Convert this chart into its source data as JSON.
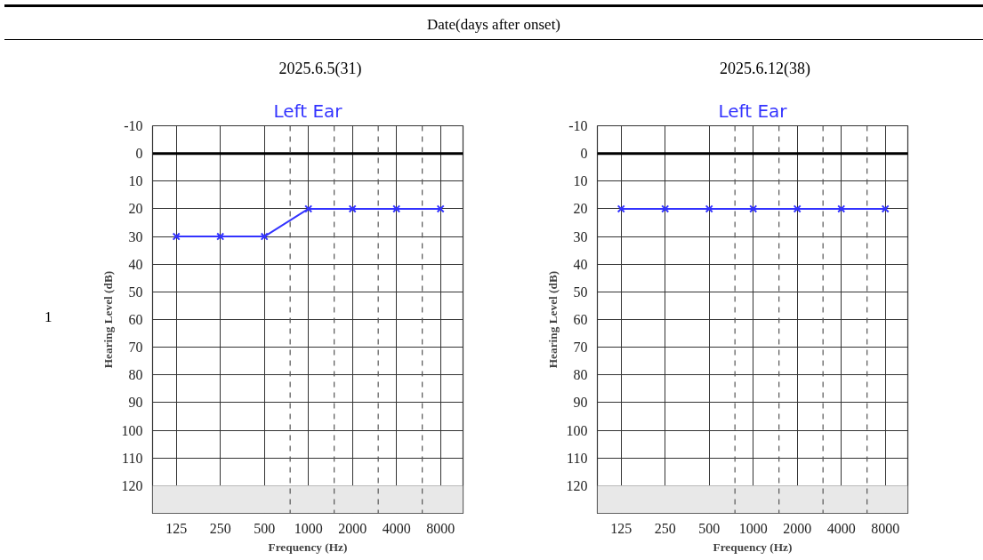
{
  "chart_data": [
    {
      "type": "line",
      "title": "Left Ear",
      "subtitle": "2025.6.5(31)",
      "xlabel": "Frequency (Hz)",
      "ylabel": "Hearing Level (dB)",
      "annotations": [
        "Date(days after onset)",
        "1"
      ],
      "x": [
        125,
        250,
        500,
        1000,
        2000,
        4000,
        8000
      ],
      "series": [
        {
          "color": "#3333ff",
          "values": [
            30,
            30,
            30,
            20,
            20,
            20,
            20
          ]
        }
      ],
      "log": "x",
      "xlim": [
        86,
        11400
      ],
      "xticks": [
        125,
        250,
        500,
        1000,
        2000,
        4000,
        8000
      ],
      "ylim": [
        130,
        -10
      ],
      "yticks": [
        -10,
        0,
        10,
        20,
        30,
        40,
        50,
        60,
        70,
        80,
        90,
        100,
        110,
        120
      ],
      "grid": true,
      "marker": "cross",
      "line_style": "solid",
      "ref_lines": [
        {
          "axis": "y",
          "value": 0,
          "color": "#000000",
          "line_style": "solid"
        },
        {
          "axis": "x",
          "value": 750,
          "color": "#555555",
          "line_style": "dashed"
        },
        {
          "axis": "x",
          "value": 1500,
          "color": "#555555",
          "line_style": "dashed"
        },
        {
          "axis": "x",
          "value": 3000,
          "color": "#555555",
          "line_style": "dashed"
        },
        {
          "axis": "x",
          "value": 6000,
          "color": "#555555",
          "line_style": "dashed"
        }
      ],
      "bands": [
        {
          "axis": "y",
          "from": 120,
          "to": 130,
          "color": "#e8e8e8"
        }
      ]
    },
    {
      "type": "line",
      "title": "Left Ear",
      "subtitle": "2025.6.12(38)",
      "xlabel": "Frequency (Hz)",
      "ylabel": "Hearing Level (dB)",
      "x": [
        125,
        250,
        500,
        1000,
        2000,
        4000,
        8000
      ],
      "series": [
        {
          "color": "#3333ff",
          "values": [
            20,
            20,
            20,
            20,
            20,
            20,
            20
          ]
        }
      ],
      "log": "x",
      "xlim": [
        86,
        11400
      ],
      "xticks": [
        125,
        250,
        500,
        1000,
        2000,
        4000,
        8000
      ],
      "ylim": [
        130,
        -10
      ],
      "yticks": [
        -10,
        0,
        10,
        20,
        30,
        40,
        50,
        60,
        70,
        80,
        90,
        100,
        110,
        120
      ],
      "grid": true,
      "marker": "cross",
      "line_style": "solid",
      "ref_lines": [
        {
          "axis": "y",
          "value": 0,
          "color": "#000000",
          "line_style": "solid"
        },
        {
          "axis": "x",
          "value": 750,
          "color": "#555555",
          "line_style": "dashed"
        },
        {
          "axis": "x",
          "value": 1500,
          "color": "#555555",
          "line_style": "dashed"
        },
        {
          "axis": "x",
          "value": 3000,
          "color": "#555555",
          "line_style": "dashed"
        },
        {
          "axis": "x",
          "value": 6000,
          "color": "#555555",
          "line_style": "dashed"
        }
      ],
      "bands": [
        {
          "axis": "y",
          "from": 120,
          "to": 130,
          "color": "#e8e8e8"
        }
      ]
    }
  ]
}
